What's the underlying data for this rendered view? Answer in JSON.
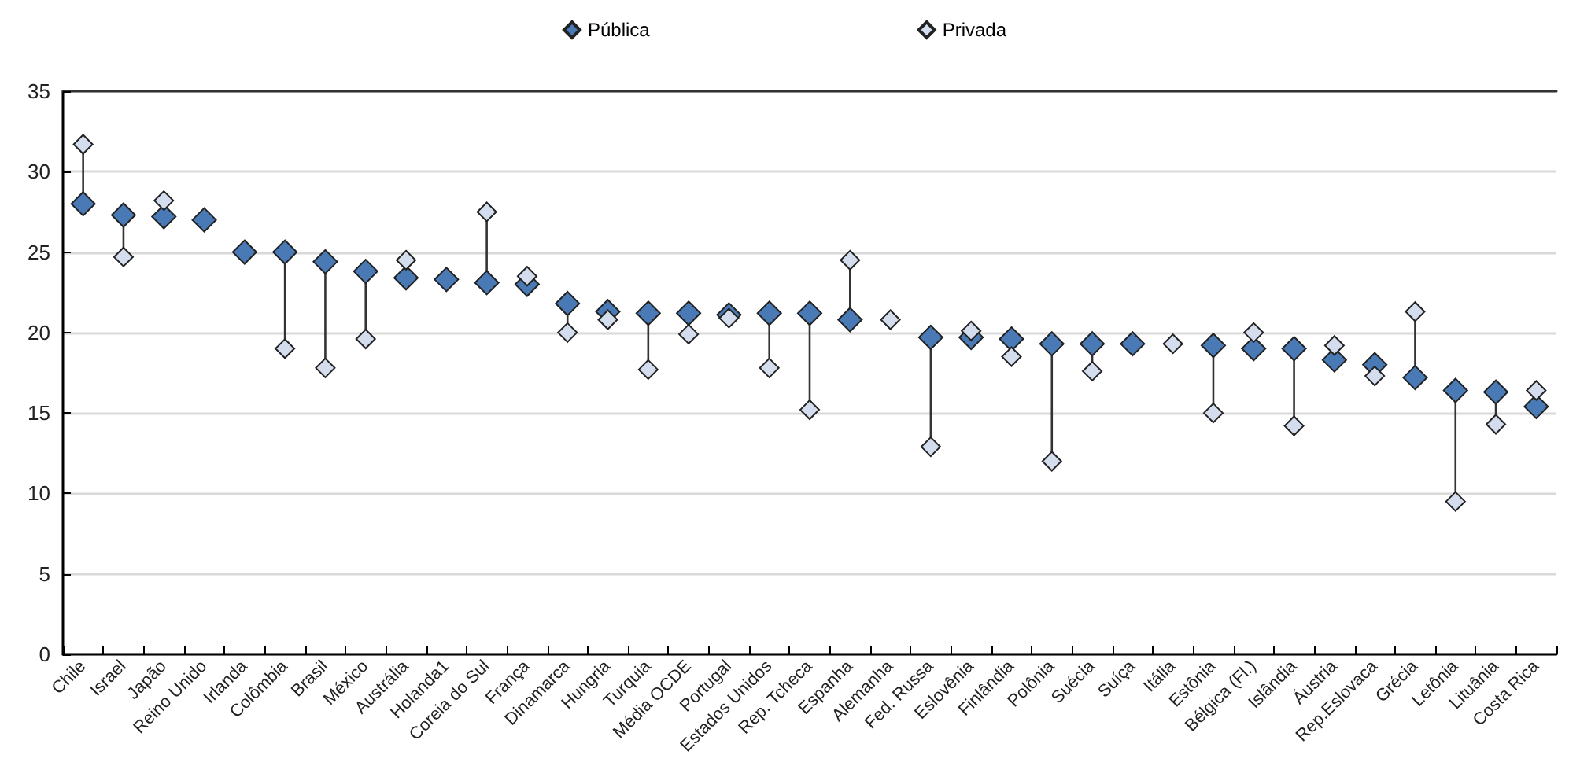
{
  "chart_data": {
    "type": "scatter",
    "marker": "diamond",
    "grid": "y",
    "legend": "top",
    "ylim": [
      0,
      35
    ],
    "yticks": [
      0,
      5,
      10,
      15,
      20,
      25,
      30,
      35
    ],
    "categories": [
      "Chile",
      "Israel",
      "Japão",
      "Reino Unido",
      "Irlanda",
      "Colômbia",
      "Brasil",
      "México",
      "Austrália",
      "Holanda1",
      "Coreia do Sul",
      "França",
      "Dinamarca",
      "Hungria",
      "Turquia",
      "Média OCDE",
      "Portugal",
      "Estados Unidos",
      "Rep. Tcheca",
      "Espanha",
      "Alemanha",
      "Fed. Russa",
      "Eslovênia",
      "Finlândia",
      "Polônia",
      "Suécia",
      "Suíça",
      "Itália",
      "Estônia",
      "Bélgica (Fl.)",
      "Islândia",
      "Áustria",
      "Rep.Eslovaca",
      "Grécia",
      "Letônia",
      "Lituânia",
      "Costa Rica"
    ],
    "series": [
      {
        "name": "Pública",
        "color": "#4a7ab5",
        "values": [
          28.0,
          27.3,
          27.2,
          27.0,
          25.0,
          25.0,
          24.4,
          23.8,
          23.4,
          23.3,
          23.1,
          23.0,
          21.8,
          21.3,
          21.2,
          21.2,
          21.1,
          21.2,
          21.2,
          20.8,
          null,
          19.7,
          19.7,
          19.6,
          19.3,
          19.3,
          19.3,
          null,
          19.2,
          19.0,
          19.0,
          18.3,
          18.0,
          17.2,
          16.4,
          16.3,
          15.4
        ]
      },
      {
        "name": "Privada",
        "color": "#d3ddee",
        "values": [
          31.7,
          24.7,
          28.2,
          null,
          null,
          19.0,
          17.8,
          19.6,
          24.5,
          null,
          27.5,
          23.5,
          20.0,
          20.8,
          17.7,
          19.9,
          20.9,
          17.8,
          15.2,
          24.5,
          20.8,
          12.9,
          20.1,
          18.5,
          12.0,
          17.6,
          null,
          19.3,
          15.0,
          20.0,
          14.2,
          19.2,
          17.3,
          21.3,
          9.5,
          14.3,
          16.4
        ]
      }
    ]
  }
}
